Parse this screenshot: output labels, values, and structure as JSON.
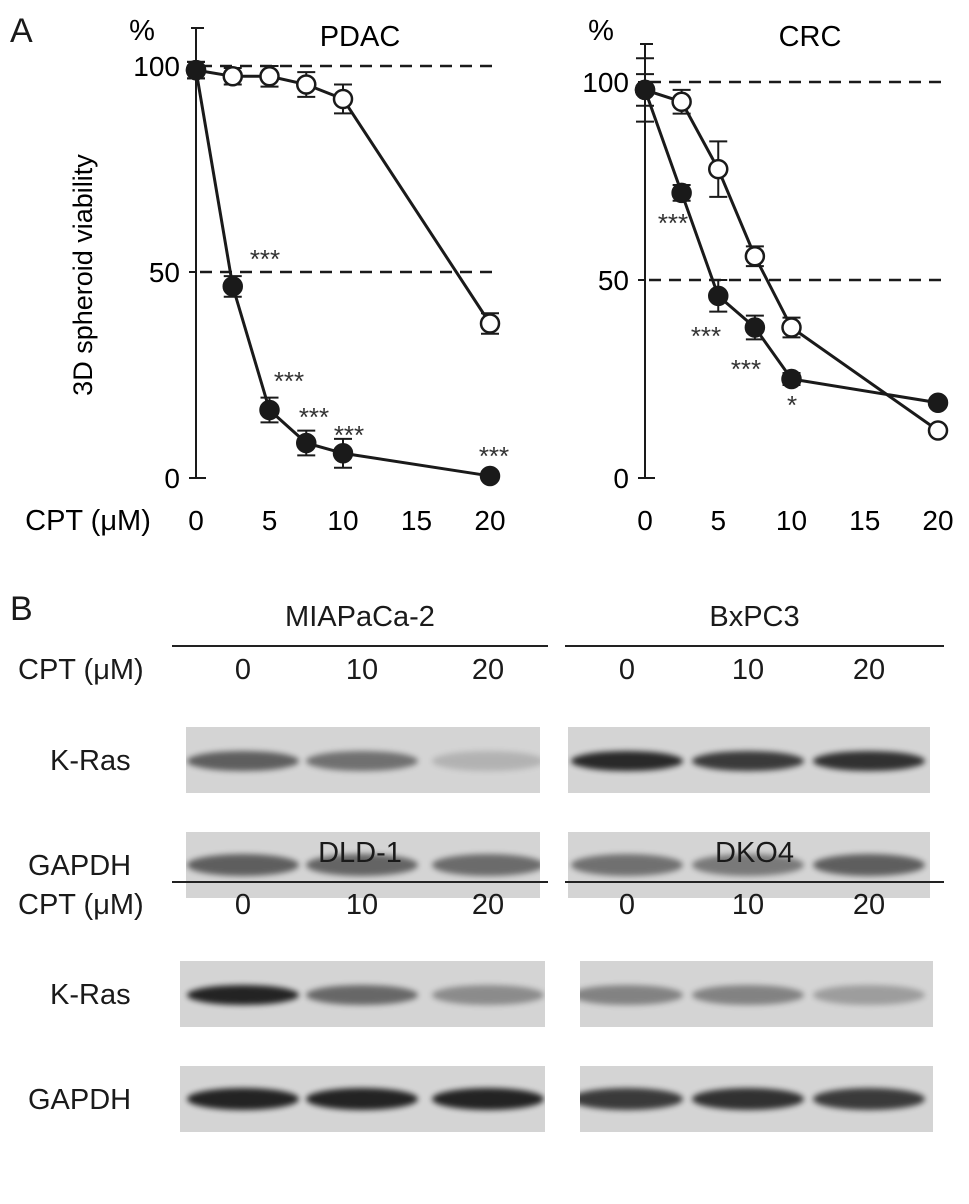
{
  "panel_a": {
    "letter": "A",
    "ylabel": "3D spheroid viability",
    "xlabel": "CPT (μM)"
  },
  "panel_b": {
    "letter": "B",
    "cpt_label": "CPT (μM)",
    "protein_labels": {
      "kras": "K-Ras",
      "gapdh": "GAPDH"
    },
    "lanes": [
      "0",
      "10",
      "20"
    ],
    "cell_lines": [
      "MIAPaCa-2",
      "BxPC3",
      "DLD-1",
      "DKO4"
    ]
  },
  "chart_data": [
    {
      "type": "line",
      "title": "PDAC",
      "unit_label": "%",
      "xlabel": "CPT (μM)",
      "ylabel": "3D spheroid viability",
      "xlim": [
        0,
        20
      ],
      "ylim": [
        0,
        100
      ],
      "xticks": [
        0,
        5,
        10,
        15,
        20
      ],
      "yticks": [
        0,
        50,
        100
      ],
      "reference_lines": [
        100,
        50
      ],
      "series": [
        {
          "marker": "open",
          "x": [
            0,
            2.5,
            5,
            7.5,
            10,
            20
          ],
          "y": [
            99,
            97.5,
            97.5,
            95.5,
            92,
            37.5
          ],
          "err": [
            2,
            2,
            2.5,
            3,
            3.5,
            2.5
          ]
        },
        {
          "marker": "filled",
          "x": [
            0,
            2.5,
            5,
            7.5,
            10,
            20
          ],
          "y": [
            99,
            46.5,
            16.5,
            8.5,
            6,
            0.5
          ],
          "err": [
            2,
            2.5,
            3,
            3,
            3.5,
            0.5
          ],
          "significance": [
            "",
            "***",
            "***",
            "***",
            "***",
            "***"
          ]
        }
      ]
    },
    {
      "type": "line",
      "title": "CRC",
      "unit_label": "%",
      "xlabel": "CPT (μM)",
      "xlim": [
        0,
        20
      ],
      "ylim": [
        0,
        100
      ],
      "xticks": [
        0,
        5,
        10,
        15,
        20
      ],
      "yticks": [
        0,
        50,
        100
      ],
      "reference_lines": [
        100,
        50
      ],
      "series": [
        {
          "marker": "open",
          "x": [
            0,
            2.5,
            5,
            7.5,
            10,
            20
          ],
          "y": [
            98,
            95,
            78,
            56,
            38,
            12
          ],
          "err": [
            8,
            3,
            7,
            2.5,
            2.5,
            1
          ]
        },
        {
          "marker": "filled",
          "x": [
            0,
            2.5,
            5,
            7.5,
            10,
            20
          ],
          "y": [
            98,
            72,
            46,
            38,
            25,
            19
          ],
          "err": [
            4,
            2,
            4,
            3,
            1.5,
            1
          ],
          "significance": [
            "",
            "***",
            "***",
            "***",
            "*",
            ""
          ]
        }
      ]
    }
  ],
  "blot_intensity": {
    "MIAPaCa-2": {
      "kras": [
        0.65,
        0.55,
        0.18
      ],
      "gapdh": [
        0.65,
        0.62,
        0.58
      ]
    },
    "BxPC3": {
      "kras": [
        0.95,
        0.85,
        0.9
      ],
      "gapdh": [
        0.55,
        0.5,
        0.65
      ]
    },
    "DLD-1": {
      "kras": [
        0.98,
        0.6,
        0.4
      ],
      "gapdh": [
        0.98,
        0.98,
        0.98
      ]
    },
    "DKO4": {
      "kras": [
        0.45,
        0.45,
        0.3
      ],
      "gapdh": [
        0.85,
        0.9,
        0.85
      ]
    }
  },
  "colors": {
    "ink": "#1a1a1a",
    "blot_bg": "#d4d4d4",
    "band": "#202020"
  }
}
